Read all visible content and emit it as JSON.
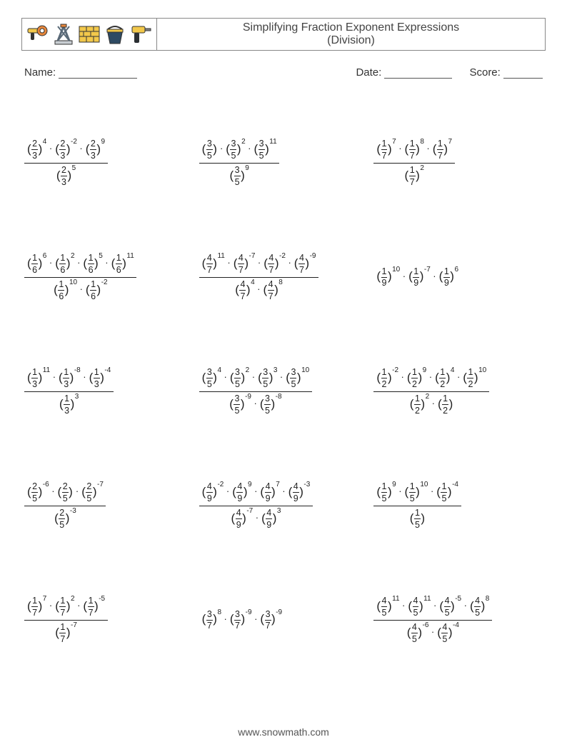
{
  "title_line1": "Simplifying Fraction Exponent Expressions",
  "title_line2": "(Division)",
  "labels": {
    "name": "Name:",
    "date": "Date:",
    "score": "Score:"
  },
  "footer": "www.snowmath.com",
  "dot": "·",
  "icons": [
    "grinder-icon",
    "jack-icon",
    "bricks-icon",
    "bucket-icon",
    "drill-icon"
  ],
  "icon_colors": {
    "yellow": "#f2c84b",
    "orange": "#e7863a",
    "steel": "#5a6a78",
    "brick": "#d99a3e",
    "dark": "#333333",
    "bucket": "#2e4a63",
    "drillbody": "#f2c84b",
    "drillgrip": "#2b2f33"
  },
  "problems": [
    [
      {
        "num": [
          {
            "n": "2",
            "d": "3",
            "e": "4"
          },
          {
            "n": "2",
            "d": "3",
            "e": "-2"
          },
          {
            "n": "2",
            "d": "3",
            "e": "9"
          }
        ],
        "den": [
          {
            "n": "2",
            "d": "3",
            "e": "5"
          }
        ]
      },
      {
        "num": [
          {
            "n": "3",
            "d": "5",
            "e": ""
          },
          {
            "n": "3",
            "d": "5",
            "e": "2"
          },
          {
            "n": "3",
            "d": "5",
            "e": "11"
          }
        ],
        "den": [
          {
            "n": "3",
            "d": "5",
            "e": "9"
          }
        ]
      },
      {
        "num": [
          {
            "n": "1",
            "d": "7",
            "e": "7"
          },
          {
            "n": "1",
            "d": "7",
            "e": "8"
          },
          {
            "n": "1",
            "d": "7",
            "e": "7"
          }
        ],
        "den": [
          {
            "n": "1",
            "d": "7",
            "e": "2"
          }
        ]
      }
    ],
    [
      {
        "num": [
          {
            "n": "1",
            "d": "6",
            "e": "6"
          },
          {
            "n": "1",
            "d": "6",
            "e": "2"
          },
          {
            "n": "1",
            "d": "6",
            "e": "5"
          },
          {
            "n": "1",
            "d": "6",
            "e": "11"
          }
        ],
        "den": [
          {
            "n": "1",
            "d": "6",
            "e": "10"
          },
          {
            "n": "1",
            "d": "6",
            "e": "-2"
          }
        ]
      },
      {
        "num": [
          {
            "n": "4",
            "d": "7",
            "e": "11"
          },
          {
            "n": "4",
            "d": "7",
            "e": "-7"
          },
          {
            "n": "4",
            "d": "7",
            "e": "-2"
          },
          {
            "n": "4",
            "d": "7",
            "e": "-9"
          }
        ],
        "den": [
          {
            "n": "4",
            "d": "7",
            "e": "4"
          },
          {
            "n": "4",
            "d": "7",
            "e": "8"
          }
        ]
      },
      {
        "num": [
          {
            "n": "1",
            "d": "9",
            "e": "10"
          },
          {
            "n": "1",
            "d": "9",
            "e": "-7"
          },
          {
            "n": "1",
            "d": "9",
            "e": "6"
          }
        ],
        "den": []
      }
    ],
    [
      {
        "num": [
          {
            "n": "1",
            "d": "3",
            "e": "11"
          },
          {
            "n": "1",
            "d": "3",
            "e": "-8"
          },
          {
            "n": "1",
            "d": "3",
            "e": "-4"
          }
        ],
        "den": [
          {
            "n": "1",
            "d": "3",
            "e": "3"
          }
        ]
      },
      {
        "num": [
          {
            "n": "3",
            "d": "5",
            "e": "4"
          },
          {
            "n": "3",
            "d": "5",
            "e": "2"
          },
          {
            "n": "3",
            "d": "5",
            "e": "3"
          },
          {
            "n": "3",
            "d": "5",
            "e": "10"
          }
        ],
        "den": [
          {
            "n": "3",
            "d": "5",
            "e": "-9"
          },
          {
            "n": "3",
            "d": "5",
            "e": "-8"
          }
        ]
      },
      {
        "num": [
          {
            "n": "1",
            "d": "2",
            "e": "-2"
          },
          {
            "n": "1",
            "d": "2",
            "e": "9"
          },
          {
            "n": "1",
            "d": "2",
            "e": "4"
          },
          {
            "n": "1",
            "d": "2",
            "e": "10"
          }
        ],
        "den": [
          {
            "n": "1",
            "d": "2",
            "e": "2"
          },
          {
            "n": "1",
            "d": "2",
            "e": ""
          }
        ]
      }
    ],
    [
      {
        "num": [
          {
            "n": "2",
            "d": "5",
            "e": "-6"
          },
          {
            "n": "2",
            "d": "5",
            "e": ""
          },
          {
            "n": "2",
            "d": "5",
            "e": "-7"
          }
        ],
        "den": [
          {
            "n": "2",
            "d": "5",
            "e": "-3"
          }
        ]
      },
      {
        "num": [
          {
            "n": "4",
            "d": "9",
            "e": "-2"
          },
          {
            "n": "4",
            "d": "9",
            "e": "9"
          },
          {
            "n": "4",
            "d": "9",
            "e": "7"
          },
          {
            "n": "4",
            "d": "9",
            "e": "-3"
          }
        ],
        "den": [
          {
            "n": "4",
            "d": "9",
            "e": "-7"
          },
          {
            "n": "4",
            "d": "9",
            "e": "3"
          }
        ]
      },
      {
        "num": [
          {
            "n": "1",
            "d": "5",
            "e": "9"
          },
          {
            "n": "1",
            "d": "5",
            "e": "10"
          },
          {
            "n": "1",
            "d": "5",
            "e": "-4"
          }
        ],
        "den": [
          {
            "n": "1",
            "d": "5",
            "e": ""
          }
        ]
      }
    ],
    [
      {
        "num": [
          {
            "n": "1",
            "d": "7",
            "e": "7"
          },
          {
            "n": "1",
            "d": "7",
            "e": "2"
          },
          {
            "n": "1",
            "d": "7",
            "e": "-5"
          }
        ],
        "den": [
          {
            "n": "1",
            "d": "7",
            "e": "-7"
          }
        ]
      },
      {
        "num": [
          {
            "n": "3",
            "d": "7",
            "e": "8"
          },
          {
            "n": "3",
            "d": "7",
            "e": "-9"
          },
          {
            "n": "3",
            "d": "7",
            "e": "-9"
          }
        ],
        "den": []
      },
      {
        "num": [
          {
            "n": "4",
            "d": "5",
            "e": "11"
          },
          {
            "n": "4",
            "d": "5",
            "e": "11"
          },
          {
            "n": "4",
            "d": "5",
            "e": "-5"
          },
          {
            "n": "4",
            "d": "5",
            "e": "8"
          }
        ],
        "den": [
          {
            "n": "4",
            "d": "5",
            "e": "-6"
          },
          {
            "n": "4",
            "d": "5",
            "e": "-4"
          }
        ]
      }
    ]
  ]
}
